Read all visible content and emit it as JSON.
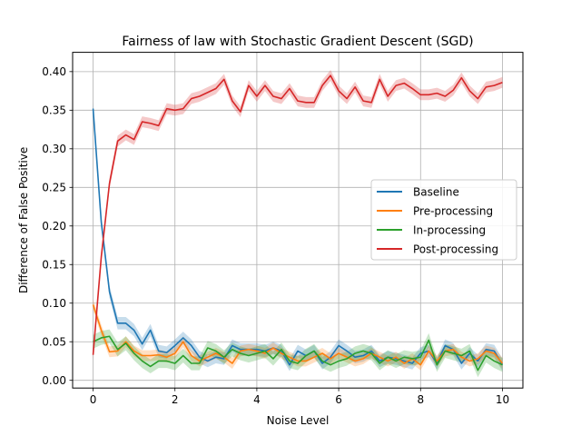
{
  "chart_data": {
    "type": "line",
    "title": "Fairness of law with Stochastic Gradient Descent (SGD)",
    "xlabel": "Noise Level",
    "ylabel": "Difference of False Positive",
    "xlim": [
      -0.5,
      10.5
    ],
    "ylim": [
      -0.01,
      0.425
    ],
    "xticks": [
      0,
      2,
      4,
      6,
      8,
      10
    ],
    "yticks": [
      0.0,
      0.05,
      0.1,
      0.15,
      0.2,
      0.25,
      0.3,
      0.35,
      0.4
    ],
    "grid": true,
    "legend_position": "center-right",
    "x": [
      0,
      0.2,
      0.4,
      0.6,
      0.8,
      1.0,
      1.2,
      1.4,
      1.6,
      1.8,
      2.0,
      2.2,
      2.4,
      2.6,
      2.8,
      3.0,
      3.2,
      3.4,
      3.6,
      3.8,
      4.0,
      4.2,
      4.4,
      4.6,
      4.8,
      5.0,
      5.2,
      5.4,
      5.6,
      5.8,
      6.0,
      6.2,
      6.4,
      6.6,
      6.8,
      7.0,
      7.2,
      7.4,
      7.6,
      7.8,
      8.0,
      8.2,
      8.4,
      8.6,
      8.8,
      9.0,
      9.2,
      9.4,
      9.6,
      9.8,
      10.0
    ],
    "series": [
      {
        "name": "Baseline",
        "color": "#1f77b4",
        "values": [
          0.352,
          0.205,
          0.115,
          0.074,
          0.074,
          0.065,
          0.047,
          0.065,
          0.038,
          0.036,
          0.045,
          0.055,
          0.045,
          0.03,
          0.025,
          0.03,
          0.028,
          0.045,
          0.04,
          0.04,
          0.04,
          0.038,
          0.042,
          0.038,
          0.02,
          0.038,
          0.032,
          0.038,
          0.022,
          0.03,
          0.045,
          0.038,
          0.03,
          0.032,
          0.038,
          0.025,
          0.03,
          0.028,
          0.025,
          0.022,
          0.035,
          0.038,
          0.022,
          0.045,
          0.04,
          0.022,
          0.035,
          0.025,
          0.04,
          0.038,
          0.02
        ],
        "band": 0.008
      },
      {
        "name": "Pre-processing",
        "color": "#ff7f0e",
        "values": [
          0.098,
          0.065,
          0.037,
          0.038,
          0.05,
          0.038,
          0.032,
          0.032,
          0.033,
          0.03,
          0.035,
          0.05,
          0.032,
          0.025,
          0.03,
          0.035,
          0.03,
          0.022,
          0.038,
          0.04,
          0.038,
          0.035,
          0.042,
          0.035,
          0.03,
          0.025,
          0.025,
          0.03,
          0.035,
          0.028,
          0.035,
          0.03,
          0.025,
          0.028,
          0.035,
          0.03,
          0.025,
          0.03,
          0.022,
          0.028,
          0.02,
          0.038,
          0.025,
          0.038,
          0.04,
          0.03,
          0.025,
          0.028,
          0.038,
          0.035,
          0.022
        ],
        "band": 0.007
      },
      {
        "name": "In-processing",
        "color": "#2ca02c",
        "values": [
          0.05,
          0.055,
          0.057,
          0.04,
          0.048,
          0.035,
          0.025,
          0.018,
          0.025,
          0.025,
          0.022,
          0.032,
          0.022,
          0.022,
          0.042,
          0.038,
          0.03,
          0.04,
          0.035,
          0.032,
          0.035,
          0.038,
          0.028,
          0.04,
          0.025,
          0.022,
          0.032,
          0.038,
          0.025,
          0.02,
          0.025,
          0.028,
          0.035,
          0.038,
          0.035,
          0.022,
          0.03,
          0.025,
          0.03,
          0.028,
          0.03,
          0.052,
          0.02,
          0.038,
          0.035,
          0.032,
          0.038,
          0.013,
          0.032,
          0.025,
          0.02
        ],
        "band": 0.009
      },
      {
        "name": "Post-processing",
        "color": "#d62728",
        "values": [
          0.033,
          0.16,
          0.255,
          0.31,
          0.318,
          0.312,
          0.335,
          0.333,
          0.33,
          0.352,
          0.35,
          0.352,
          0.365,
          0.368,
          0.373,
          0.378,
          0.39,
          0.362,
          0.348,
          0.382,
          0.368,
          0.382,
          0.368,
          0.365,
          0.378,
          0.362,
          0.36,
          0.36,
          0.382,
          0.395,
          0.375,
          0.365,
          0.38,
          0.362,
          0.36,
          0.39,
          0.368,
          0.382,
          0.385,
          0.378,
          0.37,
          0.37,
          0.372,
          0.368,
          0.376,
          0.392,
          0.375,
          0.365,
          0.38,
          0.382,
          0.386
        ],
        "band": 0.007
      }
    ]
  }
}
